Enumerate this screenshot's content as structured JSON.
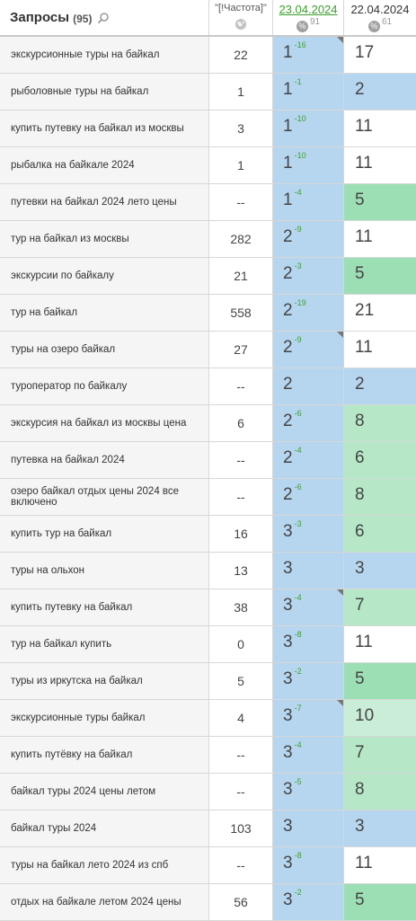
{
  "header": {
    "queries_label": "Запросы",
    "queries_count": "(95)",
    "freq_label": "\"[!Частота]\"",
    "date1": "23.04.2024",
    "date1_pct": "%",
    "date1_count": "91",
    "date2": "22.04.2024",
    "date2_pct": "%",
    "date2_count": "61"
  },
  "colors": {
    "blue": "#b6d6ef",
    "green": "#9ddfb4",
    "light_green": "#b6e8c8",
    "very_light_green": "#c9edd7",
    "white": "#ffffff",
    "change_green": "#3aa12c"
  },
  "rows": [
    {
      "query": "экскурсионные туры на байкал",
      "freq": "22",
      "pos1": "1",
      "chg1": "-16",
      "corner1": true,
      "pos2": "17",
      "bg2": "white"
    },
    {
      "query": "рыболовные туры на байкал",
      "freq": "1",
      "pos1": "1",
      "chg1": "-1",
      "corner1": false,
      "pos2": "2",
      "bg2": "blue"
    },
    {
      "query": "купить путевку на байкал из москвы",
      "freq": "3",
      "pos1": "1",
      "chg1": "-10",
      "corner1": false,
      "pos2": "11",
      "bg2": "white"
    },
    {
      "query": "рыбалка на байкале 2024",
      "freq": "1",
      "pos1": "1",
      "chg1": "-10",
      "corner1": false,
      "pos2": "11",
      "bg2": "white"
    },
    {
      "query": "путевки на байкал 2024 лето цены",
      "freq": "--",
      "pos1": "1",
      "chg1": "-4",
      "corner1": false,
      "pos2": "5",
      "bg2": "green"
    },
    {
      "query": "тур на байкал из москвы",
      "freq": "282",
      "pos1": "2",
      "chg1": "-9",
      "corner1": false,
      "pos2": "11",
      "bg2": "white"
    },
    {
      "query": "экскурсии по байкалу",
      "freq": "21",
      "pos1": "2",
      "chg1": "-3",
      "corner1": false,
      "pos2": "5",
      "bg2": "green"
    },
    {
      "query": "тур на байкал",
      "freq": "558",
      "pos1": "2",
      "chg1": "-19",
      "corner1": false,
      "pos2": "21",
      "bg2": "white"
    },
    {
      "query": "туры на озеро байкал",
      "freq": "27",
      "pos1": "2",
      "chg1": "-9",
      "corner1": true,
      "pos2": "11",
      "bg2": "white"
    },
    {
      "query": "туроператор по байкалу",
      "freq": "--",
      "pos1": "2",
      "chg1": "",
      "corner1": false,
      "pos2": "2",
      "bg2": "blue"
    },
    {
      "query": "экскурсия на байкал из москвы цена",
      "freq": "6",
      "pos1": "2",
      "chg1": "-6",
      "corner1": false,
      "pos2": "8",
      "bg2": "lgreen"
    },
    {
      "query": "путевка на байкал 2024",
      "freq": "--",
      "pos1": "2",
      "chg1": "-4",
      "corner1": false,
      "pos2": "6",
      "bg2": "lgreen"
    },
    {
      "query": "озеро байкал отдых цены 2024 все включено",
      "freq": "--",
      "pos1": "2",
      "chg1": "-6",
      "corner1": false,
      "pos2": "8",
      "bg2": "lgreen"
    },
    {
      "query": "купить тур на байкал",
      "freq": "16",
      "pos1": "3",
      "chg1": "-3",
      "corner1": false,
      "pos2": "6",
      "bg2": "lgreen"
    },
    {
      "query": "туры на ольхон",
      "freq": "13",
      "pos1": "3",
      "chg1": "",
      "corner1": false,
      "pos2": "3",
      "bg2": "blue"
    },
    {
      "query": "купить путевку на байкал",
      "freq": "38",
      "pos1": "3",
      "chg1": "-4",
      "corner1": true,
      "pos2": "7",
      "bg2": "lgreen"
    },
    {
      "query": "тур на байкал купить",
      "freq": "0",
      "pos1": "3",
      "chg1": "-8",
      "corner1": false,
      "pos2": "11",
      "bg2": "white"
    },
    {
      "query": "туры из иркутска на байкал",
      "freq": "5",
      "pos1": "3",
      "chg1": "-2",
      "corner1": false,
      "pos2": "5",
      "bg2": "green"
    },
    {
      "query": "экскурсионные туры байкал",
      "freq": "4",
      "pos1": "3",
      "chg1": "-7",
      "corner1": true,
      "pos2": "10",
      "bg2": "vlgreen"
    },
    {
      "query": "купить путёвку на байкал",
      "freq": "--",
      "pos1": "3",
      "chg1": "-4",
      "corner1": false,
      "pos2": "7",
      "bg2": "lgreen"
    },
    {
      "query": "байкал туры 2024 цены летом",
      "freq": "--",
      "pos1": "3",
      "chg1": "-5",
      "corner1": false,
      "pos2": "8",
      "bg2": "lgreen"
    },
    {
      "query": "байкал туры 2024",
      "freq": "103",
      "pos1": "3",
      "chg1": "",
      "corner1": false,
      "pos2": "3",
      "bg2": "blue"
    },
    {
      "query": "туры на байкал лето 2024 из спб",
      "freq": "--",
      "pos1": "3",
      "chg1": "-8",
      "corner1": false,
      "pos2": "11",
      "bg2": "white"
    },
    {
      "query": "отдых на байкале летом 2024 цены",
      "freq": "56",
      "pos1": "3",
      "chg1": "-2",
      "corner1": false,
      "pos2": "5",
      "bg2": "green"
    }
  ]
}
